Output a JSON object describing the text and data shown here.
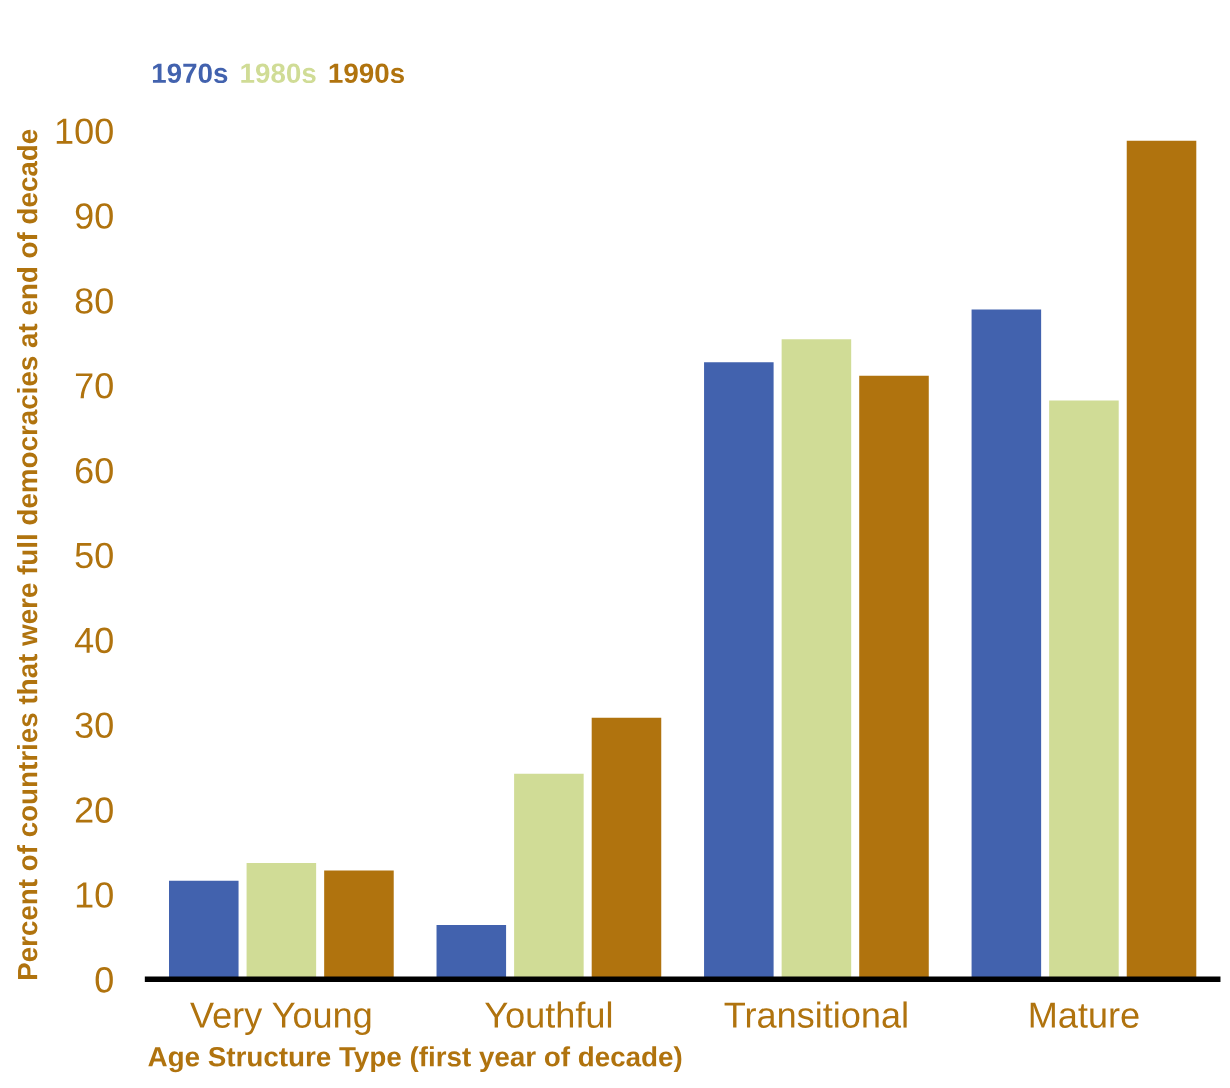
{
  "chart_data": {
    "type": "bar",
    "xlabel": "Age Structure Type (first year of decade)",
    "ylabel": "Percent of countries that were full democracies at end of decade",
    "categories": [
      "Very Young",
      "Youthful",
      "Transitional",
      "Mature"
    ],
    "series": [
      {
        "name": "1970s",
        "color": "#4262ae",
        "values": [
          11.6,
          6.4,
          72.7,
          78.9
        ]
      },
      {
        "name": "1980s",
        "color": "#d0dc96",
        "values": [
          13.7,
          24.2,
          75.4,
          68.2
        ]
      },
      {
        "name": "1990s",
        "color": "#b0730e",
        "values": [
          12.8,
          30.8,
          71.1,
          98.8
        ]
      }
    ],
    "ylim": [
      0,
      100
    ],
    "yticks": [
      0,
      10,
      20,
      30,
      40,
      50,
      60,
      70,
      80,
      90,
      100
    ],
    "grid": false,
    "legend": "top left"
  }
}
